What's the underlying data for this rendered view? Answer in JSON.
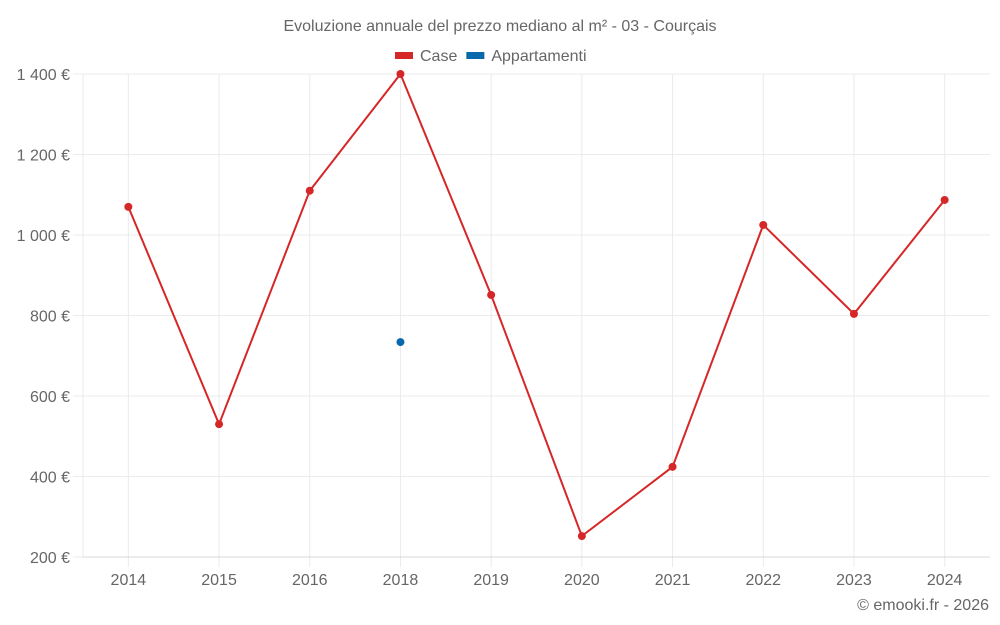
{
  "chart_data": {
    "type": "line",
    "title": "Evoluzione annuale del prezzo mediano al m² - 03 - Courçais",
    "xlabel": "",
    "ylabel": "",
    "categories": [
      "2014",
      "2015",
      "2016",
      "2018",
      "2019",
      "2020",
      "2021",
      "2022",
      "2023",
      "2024"
    ],
    "series": [
      {
        "name": "Case",
        "color": "#d62728",
        "values": [
          1070,
          530,
          1110,
          1400,
          851,
          252,
          424,
          1025,
          804,
          1087
        ]
      },
      {
        "name": "Appartamenti",
        "color": "#0868ac",
        "values": [
          null,
          null,
          null,
          734,
          null,
          null,
          null,
          null,
          null,
          null
        ]
      }
    ],
    "ylim": [
      200,
      1400
    ],
    "yticks": [
      200,
      400,
      600,
      800,
      1000,
      1200,
      1400
    ],
    "ytick_labels": [
      "200 €",
      "400 €",
      "600 €",
      "800 €",
      "1 000 €",
      "1 200 €",
      "1 400 €"
    ],
    "grid": true,
    "legend_position": "top-center"
  },
  "credit": "© emooki.fr - 2026"
}
